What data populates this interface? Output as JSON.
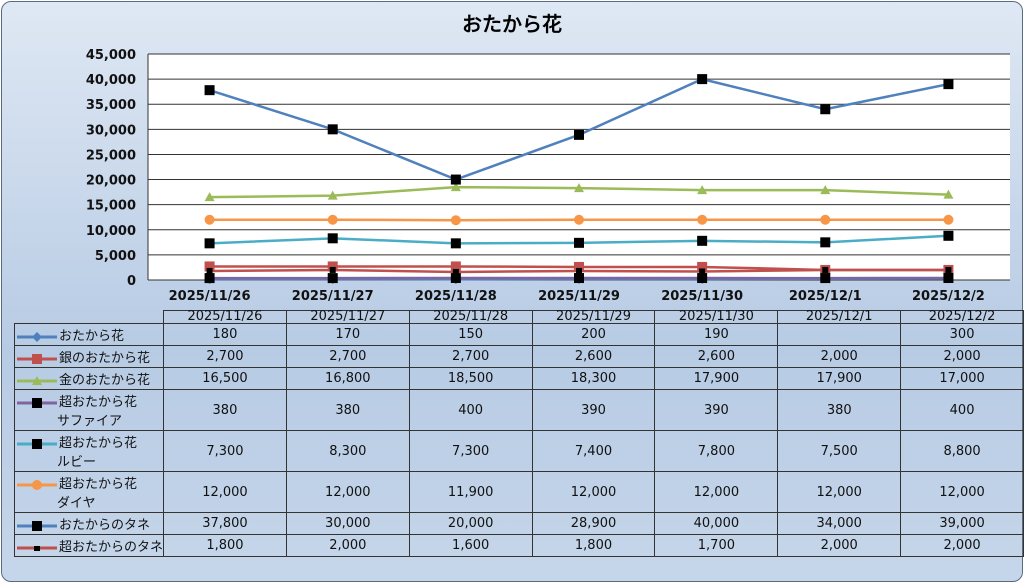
{
  "chart_data": {
    "type": "line",
    "title": "おたから花",
    "categories": [
      "2025/11/26",
      "2025/11/27",
      "2025/11/28",
      "2025/11/29",
      "2025/11/30",
      "2025/12/1",
      "2025/12/2"
    ],
    "ylim": [
      0,
      45000
    ],
    "yticks": [
      "0",
      "5,000",
      "10,000",
      "15,000",
      "20,000",
      "25,000",
      "30,000",
      "35,000",
      "40,000",
      "45,000"
    ],
    "grid": true,
    "legend": "table-bottom",
    "series": [
      {
        "name": "おたから花",
        "name2": "",
        "color": "#4f81bd",
        "marker": "diamond",
        "values": [
          180,
          170,
          150,
          200,
          190,
          null,
          300
        ],
        "labels": [
          "180",
          "170",
          "150",
          "200",
          "190",
          "",
          "300"
        ]
      },
      {
        "name": "銀のおたから花",
        "name2": "",
        "color": "#c0504d",
        "marker": "square",
        "values": [
          2700,
          2700,
          2700,
          2600,
          2600,
          2000,
          2000
        ],
        "labels": [
          "2,700",
          "2,700",
          "2,700",
          "2,600",
          "2,600",
          "2,000",
          "2,000"
        ]
      },
      {
        "name": "金のおたから花",
        "name2": "",
        "color": "#9bbb59",
        "marker": "triangle",
        "values": [
          16500,
          16800,
          18500,
          18300,
          17900,
          17900,
          17000
        ],
        "labels": [
          "16,500",
          "16,800",
          "18,500",
          "18,300",
          "17,900",
          "17,900",
          "17,000"
        ]
      },
      {
        "name": "超おたから花",
        "name2": "サファイア",
        "color": "#8064a2",
        "marker": "black-square",
        "values": [
          380,
          380,
          400,
          390,
          390,
          380,
          400
        ],
        "labels": [
          "380",
          "380",
          "400",
          "390",
          "390",
          "380",
          "400"
        ]
      },
      {
        "name": "超おたから花",
        "name2": "ルビー",
        "color": "#4bacc6",
        "marker": "black-square",
        "values": [
          7300,
          8300,
          7300,
          7400,
          7800,
          7500,
          8800
        ],
        "labels": [
          "7,300",
          "8,300",
          "7,300",
          "7,400",
          "7,800",
          "7,500",
          "8,800"
        ]
      },
      {
        "name": "超おたから花",
        "name2": "ダイヤ",
        "color": "#f79646",
        "marker": "circle",
        "values": [
          12000,
          12000,
          11900,
          12000,
          12000,
          12000,
          12000
        ],
        "labels": [
          "12,000",
          "12,000",
          "11,900",
          "12,000",
          "12,000",
          "12,000",
          "12,000"
        ]
      },
      {
        "name": "おたからのタネ",
        "name2": "",
        "color": "#4f81bd",
        "marker": "black-square",
        "values": [
          37800,
          30000,
          20000,
          28900,
          40000,
          34000,
          39000
        ],
        "labels": [
          "37,800",
          "30,000",
          "20,000",
          "28,900",
          "40,000",
          "34,000",
          "39,000"
        ]
      },
      {
        "name": "超おたからのタネ",
        "name2": "",
        "color": "#c0504d",
        "marker": "small-black-square",
        "values": [
          1800,
          2000,
          1600,
          1800,
          1700,
          2000,
          2000
        ],
        "labels": [
          "1,800",
          "2,000",
          "1,600",
          "1,800",
          "1,700",
          "2,000",
          "2,000"
        ]
      }
    ]
  }
}
